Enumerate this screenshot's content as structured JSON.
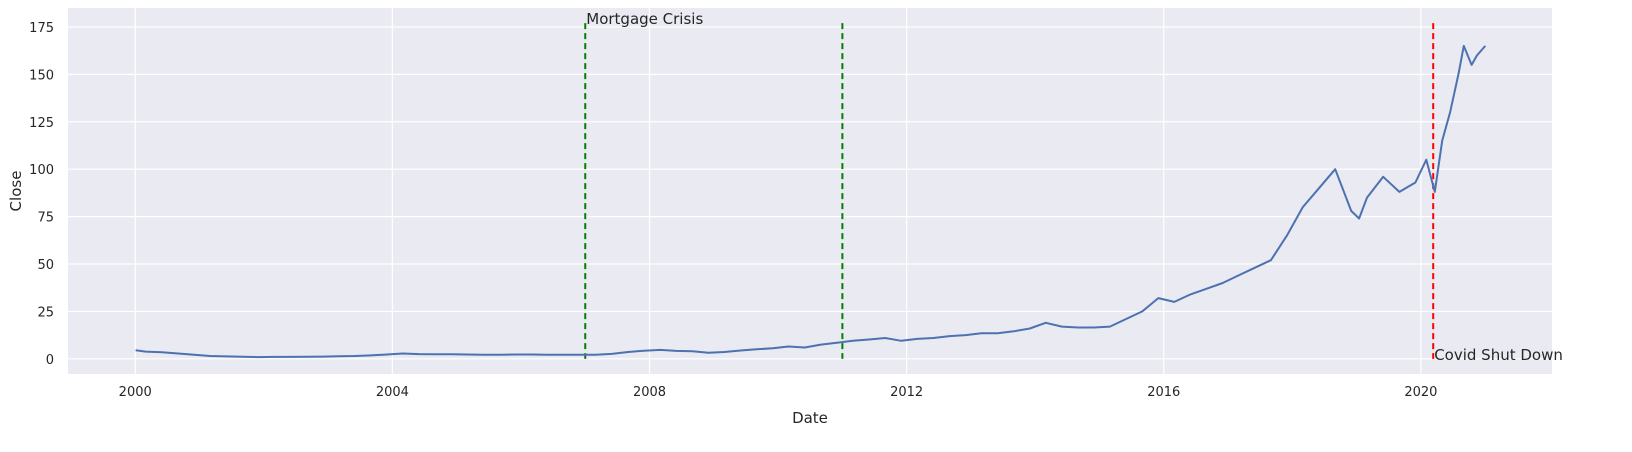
{
  "chart_data": {
    "type": "line",
    "title": "",
    "xlabel": "Date",
    "ylabel": "Close",
    "xlim": [
      "1998-12-15",
      "2022-01-15"
    ],
    "ylim": [
      -8,
      185
    ],
    "x_ticks": [
      "2000",
      "2004",
      "2008",
      "2012",
      "2016",
      "2020"
    ],
    "y_ticks": [
      0,
      25,
      50,
      75,
      100,
      125,
      150,
      175
    ],
    "grid": true,
    "legend": "none",
    "colors": {
      "background": "#eaeaf2",
      "grid": "#ffffff",
      "series": "#4c72b0",
      "mortgage_line": "#008000",
      "covid_line": "#ff0000"
    },
    "series": [
      {
        "x": [
          "2000-01-03",
          "2000-03-01",
          "2000-06-01",
          "2000-09-01",
          "2000-12-01",
          "2001-03-01",
          "2001-06-01",
          "2001-09-01",
          "2001-12-01",
          "2002-03-01",
          "2002-06-01",
          "2002-09-01",
          "2002-12-01",
          "2003-03-01",
          "2003-06-01",
          "2003-09-01",
          "2003-12-01",
          "2004-03-01",
          "2004-06-01",
          "2004-09-01",
          "2004-12-01",
          "2005-03-01",
          "2005-06-01",
          "2005-09-01",
          "2005-12-01",
          "2006-03-01",
          "2006-06-01",
          "2006-09-01",
          "2006-12-01",
          "2007-03-01",
          "2007-06-01",
          "2007-09-01",
          "2007-12-01",
          "2008-03-01",
          "2008-06-01",
          "2008-09-01",
          "2008-12-01",
          "2009-03-01",
          "2009-06-01",
          "2009-09-01",
          "2009-12-01",
          "2010-03-01",
          "2010-06-01",
          "2010-09-01",
          "2010-12-01",
          "2011-03-01",
          "2011-06-01",
          "2011-09-01",
          "2011-12-01",
          "2012-03-01",
          "2012-06-01",
          "2012-09-01",
          "2012-12-01",
          "2013-03-01",
          "2013-06-01",
          "2013-09-01",
          "2013-12-01",
          "2014-03-01",
          "2014-06-01",
          "2014-09-01",
          "2014-12-01",
          "2015-03-01",
          "2015-06-01",
          "2015-09-01",
          "2015-12-01",
          "2016-03-01",
          "2016-06-01",
          "2016-09-01",
          "2016-12-01",
          "2017-03-01",
          "2017-06-01",
          "2017-09-01",
          "2017-12-01",
          "2018-03-01",
          "2018-06-01",
          "2018-09-01",
          "2018-12-01",
          "2019-01-15",
          "2019-03-01",
          "2019-06-01",
          "2019-09-01",
          "2019-12-01",
          "2020-02-01",
          "2020-03-20",
          "2020-05-01",
          "2020-06-15",
          "2020-08-01",
          "2020-09-01",
          "2020-10-15",
          "2020-11-15",
          "2021-01-01"
        ],
        "y": [
          4.5,
          3.8,
          3.5,
          2.8,
          2.2,
          1.5,
          1.3,
          1.1,
          0.9,
          1.0,
          1.0,
          1.1,
          1.2,
          1.4,
          1.5,
          1.8,
          2.3,
          2.8,
          2.5,
          2.4,
          2.4,
          2.3,
          2.1,
          2.1,
          2.3,
          2.3,
          2.2,
          2.1,
          2.1,
          2.2,
          2.6,
          3.6,
          4.3,
          4.7,
          4.2,
          4.0,
          3.2,
          3.6,
          4.4,
          5.0,
          5.6,
          6.5,
          6.0,
          7.5,
          8.5,
          9.5,
          10.2,
          11.0,
          9.5,
          10.5,
          11.0,
          12.0,
          12.5,
          13.5,
          13.5,
          14.5,
          16.0,
          19.0,
          17.0,
          16.5,
          16.5,
          17.0,
          21.0,
          25.0,
          32.0,
          30.0,
          34.0,
          37.0,
          40.0,
          44.0,
          48.0,
          52.0,
          65.0,
          80.0,
          90.0,
          100.0,
          78.0,
          74.0,
          85.0,
          96.0,
          88.0,
          93.0,
          105.0,
          88.0,
          115.0,
          130.0,
          150.0,
          165.0,
          155.0,
          160.0,
          165.0
        ]
      }
    ],
    "annotations": [
      {
        "date": "2007-01-01",
        "label": "Mortgage Crisis",
        "color": "green"
      },
      {
        "date": "2011-01-01",
        "label": "",
        "color": "green"
      },
      {
        "date": "2020-03-11",
        "label": "Covid Shut Down",
        "color": "red"
      }
    ]
  }
}
